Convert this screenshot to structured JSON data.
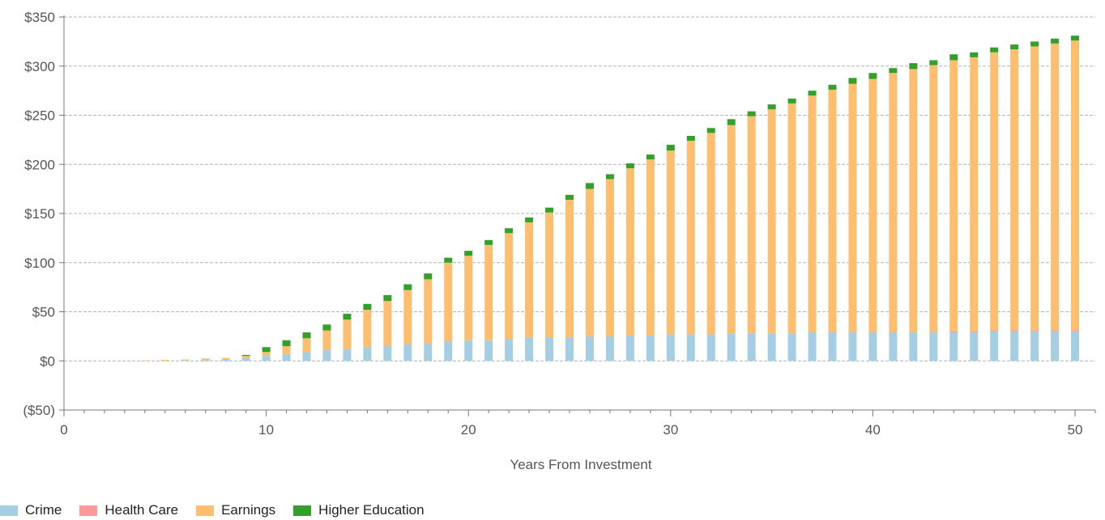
{
  "chart_data": {
    "type": "bar",
    "stacked": true,
    "title": "",
    "xlabel": "Years From Investment",
    "ylabel": "",
    "xlim": [
      0,
      51
    ],
    "ylim": [
      -50,
      350
    ],
    "x_ticks": [
      0,
      10,
      20,
      30,
      40,
      50
    ],
    "x_tick_labels": [
      "0",
      "10",
      "20",
      "30",
      "40",
      "50"
    ],
    "y_ticks": [
      -50,
      0,
      50,
      100,
      150,
      200,
      250,
      300,
      350
    ],
    "y_tick_labels": [
      "($50)",
      "$0",
      "$50",
      "$100",
      "$150",
      "$200",
      "$250",
      "$300",
      "$350"
    ],
    "grid": "horizontal dashed",
    "legend_position": "bottom-left",
    "x": [
      4,
      5,
      6,
      7,
      8,
      9,
      10,
      11,
      12,
      13,
      14,
      15,
      16,
      17,
      18,
      19,
      20,
      21,
      22,
      23,
      24,
      25,
      26,
      27,
      28,
      29,
      30,
      31,
      32,
      33,
      34,
      35,
      36,
      37,
      38,
      39,
      40,
      41,
      42,
      43,
      44,
      45,
      46,
      47,
      48,
      49,
      50
    ],
    "series": [
      {
        "name": "Crime",
        "color": "#a6cee3",
        "values": [
          0,
          0,
          0.5,
          1,
          1.5,
          3,
          5,
          7,
          9,
          11,
          12,
          14,
          15,
          17,
          18,
          20,
          21,
          21,
          22,
          24,
          24,
          24,
          25,
          25,
          26,
          26,
          27,
          27,
          27,
          28,
          28,
          28,
          28,
          29,
          29,
          29,
          29,
          29,
          29,
          29,
          29,
          29,
          30,
          30,
          30,
          30,
          30
        ]
      },
      {
        "name": "Health Care",
        "color": "#fb9a99",
        "values": [
          0,
          0,
          0,
          0,
          0,
          0,
          0,
          0,
          0,
          0,
          0,
          0,
          0,
          0,
          0,
          0,
          0,
          0,
          0,
          0,
          0,
          0,
          0,
          0,
          0,
          0,
          0,
          0,
          0,
          0,
          0,
          0,
          0,
          0,
          0,
          0,
          0,
          0,
          0,
          0,
          1,
          1,
          1,
          1,
          1,
          1,
          1
        ]
      },
      {
        "name": "Earnings",
        "color": "#fdbf6f",
        "values": [
          0.5,
          1,
          1,
          1.5,
          1.5,
          2,
          4,
          8,
          14,
          20,
          30,
          38,
          46,
          55,
          65,
          80,
          86,
          97,
          108,
          117,
          127,
          140,
          150,
          160,
          170,
          179,
          187,
          197,
          205,
          212,
          221,
          228,
          234,
          241,
          247,
          253,
          258,
          264,
          268,
          272,
          276,
          279,
          283,
          286,
          289,
          292,
          295
        ]
      },
      {
        "name": "Higher Education",
        "color": "#33a02c",
        "values": [
          0,
          0,
          0,
          0,
          0,
          1,
          5,
          6,
          6,
          6,
          6,
          6,
          6,
          6,
          6,
          5,
          5,
          5,
          5,
          5,
          5,
          5,
          6,
          5,
          5,
          5,
          6,
          5,
          5,
          6,
          5,
          5,
          5,
          5,
          5,
          6,
          6,
          5,
          6,
          5,
          6,
          5,
          5,
          5,
          5,
          5,
          5
        ]
      }
    ]
  }
}
